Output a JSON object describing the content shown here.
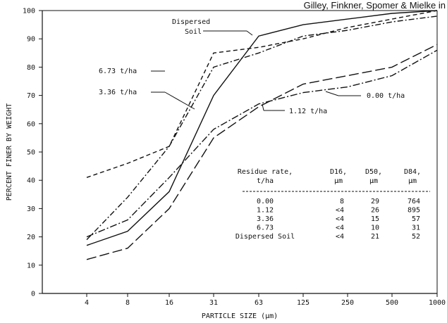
{
  "header_text": "Gilley, Finkner, Spomer & Mielke in",
  "chart_data": {
    "type": "line",
    "xlabel": "PARTICLE SIZE (μm)",
    "ylabel": "PERCENT FINER BY WEIGHT",
    "x_scale": "log",
    "x": [
      4,
      8,
      16,
      31,
      63,
      125,
      250,
      500,
      1000
    ],
    "x_tick_labels": [
      "4",
      "8",
      "16",
      "31",
      "63",
      "125",
      "250",
      "500",
      "1000"
    ],
    "ylim": [
      0,
      100
    ],
    "y_ticks": [
      0,
      10,
      20,
      30,
      40,
      50,
      60,
      70,
      80,
      90,
      100
    ],
    "series": [
      {
        "name": "Dispersed Soil",
        "dash": "",
        "values": [
          17,
          22,
          36,
          70,
          91,
          95,
          97,
          99,
          100
        ]
      },
      {
        "name": "6.73 t/ha",
        "dash": "6,4",
        "values": [
          41,
          46,
          52,
          85,
          87,
          90,
          94,
          97,
          100
        ]
      },
      {
        "name": "3.36 t/ha",
        "dash": "8,3,2,3",
        "values": [
          19,
          34,
          52,
          80,
          85,
          91,
          93,
          96,
          98
        ]
      },
      {
        "name": "0.00 t/ha",
        "dash": "14,5",
        "values": [
          12,
          16,
          30,
          55,
          66,
          74,
          77,
          80,
          88
        ]
      },
      {
        "name": "1.12 t/ha",
        "dash": "10,3,2,3",
        "values": [
          20,
          26,
          41,
          58,
          67,
          71,
          73,
          77,
          86
        ]
      }
    ],
    "annotations": [
      {
        "text": "Dispersed",
        "series": "Dispersed Soil"
      },
      {
        "text": "Soil",
        "series": "Dispersed Soil"
      },
      {
        "text": "6.73 t/ha",
        "series": "6.73 t/ha"
      },
      {
        "text": "3.36 t/ha",
        "series": "3.36 t/ha"
      },
      {
        "text": "0.00 t/ha",
        "series": "0.00 t/ha"
      },
      {
        "text": "1.12 t/ha",
        "series": "1.12 t/ha"
      }
    ],
    "table": {
      "headers": [
        {
          "main": "Residue rate,",
          "sub": "t/ha"
        },
        {
          "main": "D16,",
          "sub": "μm"
        },
        {
          "main": "D50,",
          "sub": "μm"
        },
        {
          "main": "D84,",
          "sub": "μm"
        }
      ],
      "rows": [
        [
          "0.00",
          "8",
          "29",
          "764"
        ],
        [
          "1.12",
          "<4",
          "26",
          "895"
        ],
        [
          "3.36",
          "<4",
          "15",
          "57"
        ],
        [
          "6.73",
          "<4",
          "10",
          "31"
        ],
        [
          "Dispersed Soil",
          "<4",
          "21",
          "52"
        ]
      ]
    }
  }
}
